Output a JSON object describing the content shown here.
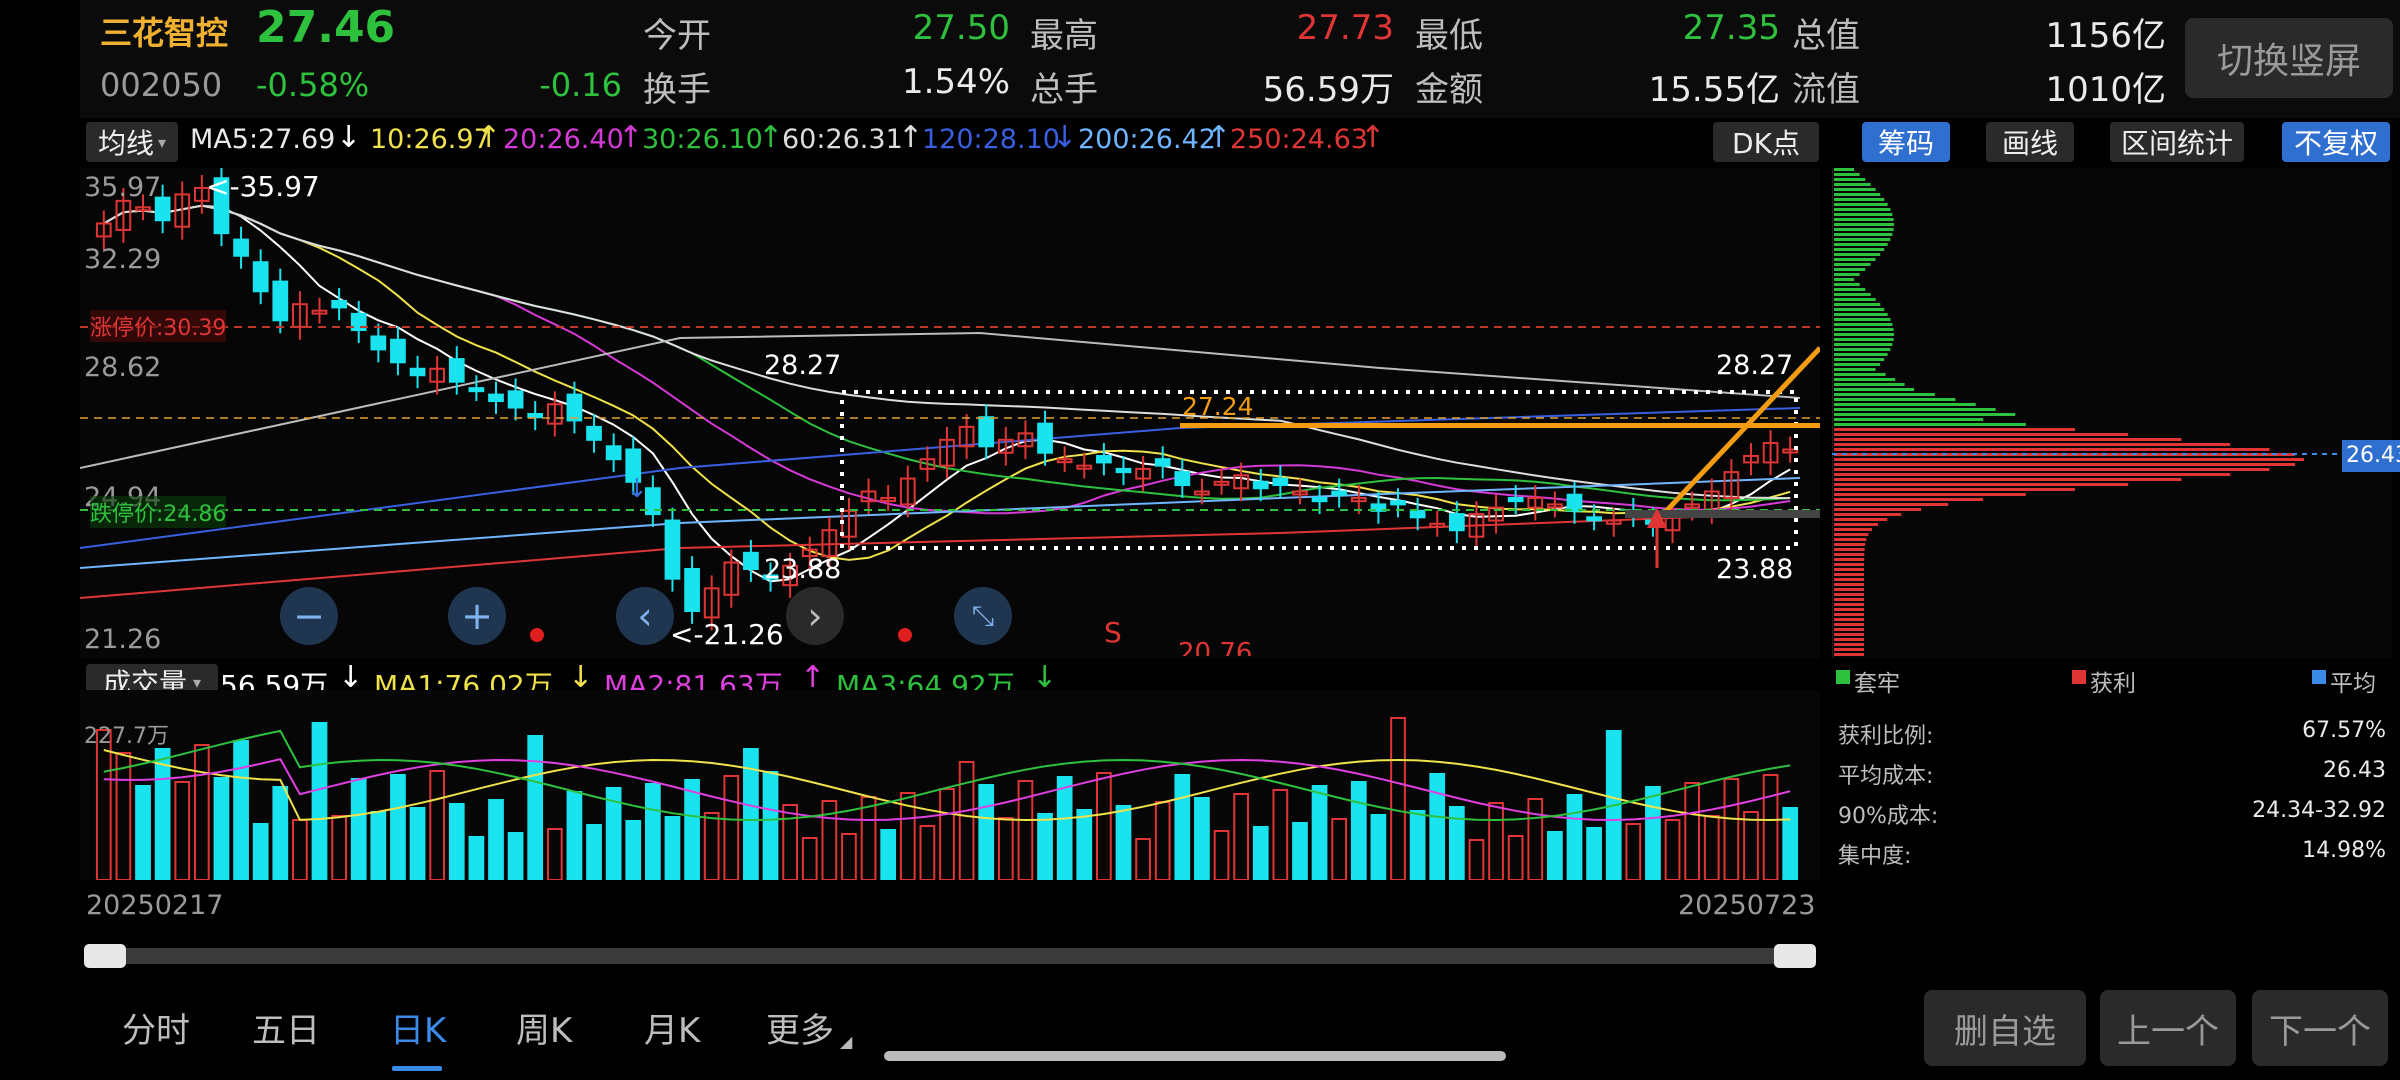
{
  "stock": {
    "name": "三花智控",
    "price": "27.46",
    "code": "002050",
    "change_pct": "-0.58%",
    "change": "-0.16"
  },
  "quote": {
    "open_label": "今开",
    "open": "27.50",
    "high_label": "最高",
    "high": "27.73",
    "low_label": "最低",
    "low": "27.35",
    "mktcap_label": "总值",
    "mktcap": "1156亿",
    "turnover_label": "换手",
    "turnover": "1.54%",
    "volume_label": "总手",
    "volume": "56.59万",
    "amount_label": "金额",
    "amount": "15.55亿",
    "float_label": "流值",
    "float": "1010亿"
  },
  "switch_label": "切换竖屏",
  "ma_bar": {
    "selector": "均线",
    "ma5": "MA5:27.69",
    "ma10": "10:26.97",
    "ma20": "20:26.40",
    "ma30": "30:26.10",
    "ma60": "60:26.31",
    "ma120": "120:28.10",
    "ma200": "200:26.42",
    "ma250": "250:24.63",
    "dk": "DK点",
    "buttons": [
      "筹码",
      "画线",
      "区间统计",
      "不复权"
    ]
  },
  "main_chart": {
    "y_ticks": [
      "35.97",
      "32.29",
      "28.62",
      "24.94",
      "21.26"
    ],
    "max_label": "<-35.97",
    "min_label": "<-21.26",
    "limit_up_label": "涨停价:30.39",
    "limit_down_label": "跌停价:24.86",
    "box_top_left": "28.27",
    "box_bottom_left": "23.88",
    "box_top_right": "28.27",
    "box_bottom_right": "23.88",
    "line_label": "27.24",
    "signal": "S",
    "clipped_label": "20.76"
  },
  "volume": {
    "selector": "成交量",
    "vol": "56.59万",
    "ma1": "MA1:76.02万",
    "ma2": "MA2:81.63万",
    "ma3": "MA3:64.92万",
    "max_label": "227.7万",
    "date_start": "20250217",
    "date_end": "20250723"
  },
  "chips": {
    "price_tag": "26.43",
    "legend": [
      "套牢",
      "获利",
      "平均"
    ],
    "stats": [
      {
        "label": "获利比例:",
        "value": "67.57%"
      },
      {
        "label": "平均成本:",
        "value": "26.43"
      },
      {
        "label": "90%成本:",
        "value": "24.34-32.92"
      },
      {
        "label": "集中度:",
        "value": "14.98%"
      }
    ]
  },
  "tabs": [
    "分时",
    "五日",
    "日K",
    "周K",
    "月K",
    "更多"
  ],
  "bottom_buttons": [
    "删自选",
    "上一个",
    "下一个"
  ],
  "colors": {
    "up": "#e03535",
    "down": "#19e3ee",
    "accent": "#3a8be8",
    "orange": "#f39c12"
  },
  "chart_data": {
    "type": "candlestick",
    "title": "",
    "x_range": [
      "20250217",
      "20250723"
    ],
    "ylim": [
      21.26,
      35.97
    ],
    "y_ticks": [
      35.97,
      32.29,
      28.62,
      24.94,
      21.26
    ],
    "period_high": 35.97,
    "period_low": 21.26,
    "last_close": 27.46,
    "moving_averages": [
      {
        "name": "MA5",
        "value": 27.69,
        "color": "#ffffff"
      },
      {
        "name": "MA10",
        "value": 26.97,
        "color": "#f0e24a"
      },
      {
        "name": "MA20",
        "value": 26.4,
        "color": "#d63ad6"
      },
      {
        "name": "MA30",
        "value": 26.1,
        "color": "#2ec13e"
      },
      {
        "name": "MA60",
        "value": 26.31,
        "color": "#dddddd"
      },
      {
        "name": "MA120",
        "value": 28.1,
        "color": "#3a5fe0"
      },
      {
        "name": "MA200",
        "value": 26.42,
        "color": "#6fb5ff"
      },
      {
        "name": "MA250",
        "value": 24.63,
        "color": "#e03535"
      }
    ],
    "limit_up": 30.39,
    "limit_down": 24.86,
    "box": {
      "top": 28.27,
      "bottom": 23.88
    },
    "volume": {
      "latest": "56.59万",
      "max": "227.7万",
      "MA1": "76.02万",
      "MA2": "81.63万",
      "MA3": "64.92万"
    },
    "cost_distribution": {
      "profit_ratio": "67.57%",
      "avg_cost": 26.43,
      "cost_90": "24.34-32.92",
      "concentration": "14.98%"
    }
  }
}
